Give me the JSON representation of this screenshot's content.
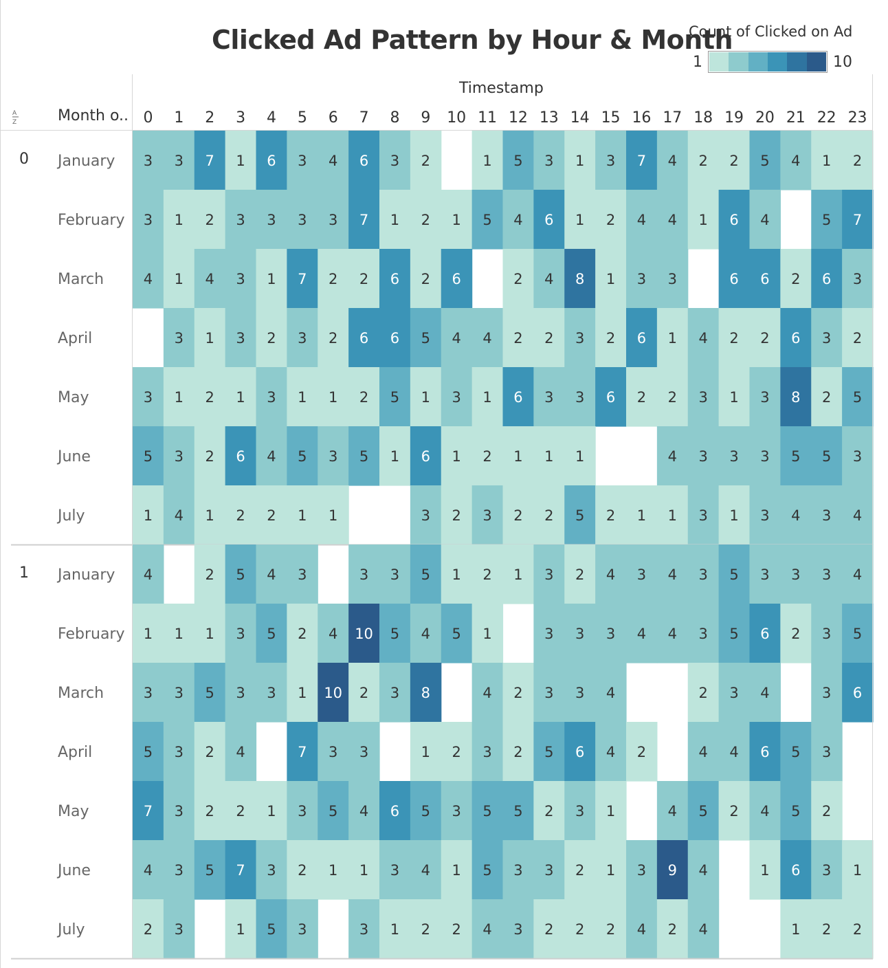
{
  "title": "Clicked Ad Pattern by Hour & Month",
  "legend": {
    "title": "Count of Clicked on Ad",
    "min_label": "1",
    "max_label": "10",
    "colors": [
      "#bee5dc",
      "#8ecbcd",
      "#62b0c4",
      "#3b94b7",
      "#2f74a0",
      "#2b5a8a"
    ]
  },
  "x_axis_title": "Timestamp",
  "row_header": "Month o..",
  "sort_icon": "sort-az-icon",
  "chart_data": {
    "type": "heatmap",
    "title": "Clicked Ad Pattern by Hour & Month",
    "xlabel": "Timestamp",
    "value_label": "Count of Clicked on Ad",
    "color_range": [
      1,
      10
    ],
    "x": [
      "0",
      "1",
      "2",
      "3",
      "4",
      "5",
      "6",
      "7",
      "8",
      "9",
      "10",
      "11",
      "12",
      "13",
      "14",
      "15",
      "16",
      "17",
      "18",
      "19",
      "20",
      "21",
      "22",
      "23"
    ],
    "groups": [
      {
        "name": "0",
        "rows": [
          {
            "label": "January",
            "values": [
              3,
              3,
              7,
              1,
              6,
              3,
              4,
              6,
              3,
              2,
              null,
              1,
              5,
              3,
              1,
              3,
              7,
              4,
              2,
              2,
              5,
              4,
              1,
              2
            ]
          },
          {
            "label": "February",
            "values": [
              3,
              1,
              2,
              3,
              3,
              3,
              3,
              7,
              1,
              2,
              1,
              5,
              4,
              6,
              1,
              2,
              4,
              4,
              1,
              6,
              4,
              null,
              5,
              7
            ]
          },
          {
            "label": "March",
            "values": [
              4,
              1,
              4,
              3,
              1,
              7,
              2,
              2,
              6,
              2,
              6,
              null,
              2,
              4,
              8,
              1,
              3,
              3,
              null,
              6,
              6,
              2,
              6,
              3
            ]
          },
          {
            "label": "April",
            "values": [
              null,
              3,
              1,
              3,
              2,
              3,
              2,
              6,
              6,
              5,
              4,
              4,
              2,
              2,
              3,
              2,
              6,
              1,
              4,
              2,
              2,
              6,
              3,
              2
            ]
          },
          {
            "label": "May",
            "values": [
              3,
              1,
              2,
              1,
              3,
              1,
              1,
              2,
              5,
              1,
              3,
              1,
              6,
              3,
              3,
              6,
              2,
              2,
              3,
              1,
              3,
              8,
              2,
              5
            ]
          },
          {
            "label": "June",
            "values": [
              5,
              3,
              2,
              6,
              4,
              5,
              3,
              5,
              1,
              6,
              1,
              2,
              1,
              1,
              1,
              null,
              null,
              4,
              3,
              3,
              3,
              5,
              5,
              3
            ]
          },
          {
            "label": "July",
            "values": [
              1,
              4,
              1,
              2,
              2,
              1,
              1,
              null,
              null,
              3,
              2,
              3,
              2,
              2,
              5,
              2,
              1,
              1,
              3,
              1,
              3,
              4,
              3,
              4
            ]
          }
        ]
      },
      {
        "name": "1",
        "rows": [
          {
            "label": "January",
            "values": [
              4,
              null,
              2,
              5,
              4,
              3,
              null,
              3,
              3,
              5,
              1,
              2,
              1,
              3,
              2,
              4,
              3,
              4,
              3,
              5,
              3,
              3,
              3,
              4
            ]
          },
          {
            "label": "February",
            "values": [
              1,
              1,
              1,
              3,
              5,
              2,
              4,
              10,
              5,
              4,
              5,
              1,
              null,
              3,
              3,
              3,
              4,
              4,
              3,
              5,
              6,
              2,
              3,
              5
            ]
          },
          {
            "label": "March",
            "values": [
              3,
              3,
              5,
              3,
              3,
              1,
              10,
              2,
              3,
              8,
              null,
              4,
              2,
              3,
              3,
              4,
              null,
              null,
              2,
              3,
              4,
              null,
              3,
              6
            ]
          },
          {
            "label": "April",
            "values": [
              5,
              3,
              2,
              4,
              null,
              7,
              3,
              3,
              null,
              1,
              2,
              3,
              2,
              5,
              6,
              4,
              2,
              null,
              4,
              4,
              6,
              5,
              3,
              null
            ]
          },
          {
            "label": "May",
            "values": [
              7,
              3,
              2,
              2,
              1,
              3,
              5,
              4,
              6,
              5,
              3,
              5,
              5,
              2,
              3,
              1,
              null,
              4,
              5,
              2,
              4,
              5,
              2,
              null
            ]
          },
          {
            "label": "June",
            "values": [
              4,
              3,
              5,
              7,
              3,
              2,
              1,
              1,
              3,
              4,
              1,
              5,
              3,
              3,
              2,
              1,
              3,
              9,
              4,
              null,
              1,
              6,
              3,
              1
            ]
          },
          {
            "label": "July",
            "values": [
              2,
              3,
              null,
              1,
              5,
              3,
              null,
              3,
              1,
              2,
              2,
              4,
              3,
              2,
              2,
              2,
              4,
              2,
              4,
              null,
              null,
              1,
              2,
              2
            ]
          }
        ]
      }
    ]
  }
}
